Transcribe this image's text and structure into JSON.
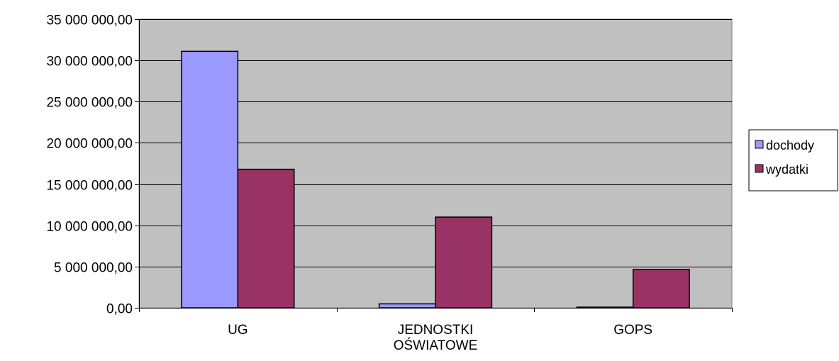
{
  "chart_data": {
    "type": "bar",
    "title": "",
    "xlabel": "",
    "ylabel": "",
    "categories": [
      [
        "UG"
      ],
      [
        "JEDNOSTKI",
        "OŚWIATOWE"
      ],
      [
        "GOPS"
      ]
    ],
    "series": [
      {
        "name": "dochody",
        "values": [
          31100000,
          480000,
          80000
        ],
        "color": "#9999ff"
      },
      {
        "name": "wydatki",
        "values": [
          16800000,
          11000000,
          4650000
        ],
        "color": "#993366"
      }
    ],
    "ylim": [
      0,
      35000000
    ],
    "ytick_step": 5000000,
    "ytick_labels": [
      "0,00",
      "5 000 000,00",
      "10 000 000,00",
      "15 000 000,00",
      "20 000 000,00",
      "25 000 000,00",
      "30 000 000,00",
      "35 000 000,00"
    ],
    "grid": true,
    "plot_background": "#c0c0c0",
    "gridline_color": "#000000",
    "legend_position": "right"
  }
}
